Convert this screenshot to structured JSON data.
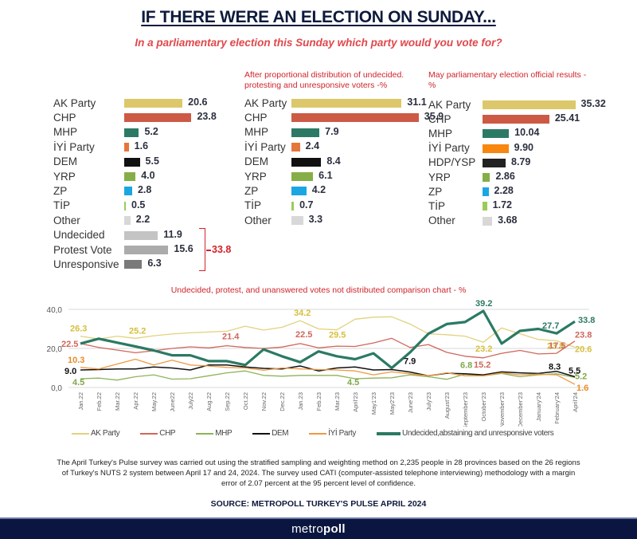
{
  "header": {
    "title": "IF THERE WERE AN ELECTION ON SUNDAY...",
    "subtitle": "In a parliamentary election this Sunday which party would you vote for?"
  },
  "panels": {
    "current": {
      "caption": "",
      "rows": [
        {
          "label": "AK Party",
          "value": 20.6,
          "display": "20.6",
          "color": "#dcc86a"
        },
        {
          "label": "CHP",
          "value": 23.8,
          "display": "23.8",
          "color": "#cd5a45"
        },
        {
          "label": "MHP",
          "value": 5.2,
          "display": "5.2",
          "color": "#2c7a66"
        },
        {
          "label": "İYİ Party",
          "value": 1.6,
          "display": "1.6",
          "color": "#e5763a"
        },
        {
          "label": "DEM",
          "value": 5.5,
          "display": "5.5",
          "color": "#111111"
        },
        {
          "label": "YRP",
          "value": 4.0,
          "display": "4.0",
          "color": "#86ae48"
        },
        {
          "label": "ZP",
          "value": 2.8,
          "display": "2.8",
          "color": "#1ba6e3"
        },
        {
          "label": "TİP",
          "value": 0.5,
          "display": "0.5",
          "color": "#9acb5a"
        },
        {
          "label": "Other",
          "value": 2.2,
          "display": "2.2",
          "color": "#d8d8d8"
        },
        {
          "label": "Undecided",
          "value": 11.9,
          "display": "11.9",
          "color": "#c4c4c4"
        },
        {
          "label": "Protest Vote",
          "value": 15.6,
          "display": "15.6",
          "color": "#ababab"
        },
        {
          "label": "Unresponsive",
          "value": 6.3,
          "display": "6.3",
          "color": "#7a7a7a"
        }
      ],
      "bracket_total": "33.8"
    },
    "distributed": {
      "caption": "After proportional distribution of undecided. protesting and unresponsive voters -%",
      "rows": [
        {
          "label": "AK Party",
          "value": 31.1,
          "display": "31.1",
          "color": "#dcc86a"
        },
        {
          "label": "CHP",
          "value": 35.9,
          "display": "35.9",
          "color": "#cd5a45"
        },
        {
          "label": "MHP",
          "value": 7.9,
          "display": "7.9",
          "color": "#2c7a66"
        },
        {
          "label": "İYİ Party",
          "value": 2.4,
          "display": "2.4",
          "color": "#e5763a"
        },
        {
          "label": "DEM",
          "value": 8.4,
          "display": "8.4",
          "color": "#111111"
        },
        {
          "label": "YRP",
          "value": 6.1,
          "display": "6.1",
          "color": "#86ae48"
        },
        {
          "label": "ZP",
          "value": 4.2,
          "display": "4.2",
          "color": "#1ba6e3"
        },
        {
          "label": "TİP",
          "value": 0.7,
          "display": "0.7",
          "color": "#9acb5a"
        },
        {
          "label": "Other",
          "value": 3.3,
          "display": "3.3",
          "color": "#d8d8d8"
        }
      ]
    },
    "official": {
      "caption": "May parliamentary election official results - %",
      "rows": [
        {
          "label": "AK Party",
          "value": 35.32,
          "display": "35.32",
          "color": "#dcc86a"
        },
        {
          "label": "CHP",
          "value": 25.41,
          "display": "25.41",
          "color": "#cd5a45"
        },
        {
          "label": "MHP",
          "value": 10.04,
          "display": "10.04",
          "color": "#2c7a66"
        },
        {
          "label": "İYİ Party",
          "value": 9.9,
          "display": "9.90",
          "color": "#f7870f"
        },
        {
          "label": "HDP/YSP",
          "value": 8.79,
          "display": "8.79",
          "color": "#222222"
        },
        {
          "label": "YRP",
          "value": 2.86,
          "display": "2.86",
          "color": "#86ae48"
        },
        {
          "label": "ZP",
          "value": 2.28,
          "display": "2.28",
          "color": "#1ba6e3"
        },
        {
          "label": "TİP",
          "value": 1.72,
          "display": "1.72",
          "color": "#9acb5a"
        },
        {
          "label": "Other",
          "value": 3.68,
          "display": "3.68",
          "color": "#d8d8d8"
        }
      ]
    }
  },
  "chart_data": {
    "type": "line",
    "title": "Undecided, protest, and unanswered votes not distributed comparison chart - %",
    "xlabel": "",
    "ylabel": "",
    "ylim": [
      0,
      40
    ],
    "yticks": [
      "0,0",
      "20,0",
      "40,0"
    ],
    "ytick_values": [
      0,
      20,
      40
    ],
    "grid": true,
    "legend_position": "bottom",
    "x": [
      "Jan.22",
      "Feb.22",
      "Mar.22",
      "Apr.22",
      "May.22",
      "June22",
      "July22",
      "Aug.22",
      "Sep.22",
      "Oct.22",
      "Nov.22",
      "Dec.22",
      "Jan.23",
      "Feb.23",
      "Mar.23",
      "April'23",
      "May1'23",
      "May2'23",
      "June'23",
      "July'23",
      "August'23",
      "September'23",
      "October'23",
      "November'23",
      "December'23",
      "January'24",
      "February'24",
      "April'24"
    ],
    "series": [
      {
        "name": "AK Party",
        "color": "#e2d27e",
        "width": 1.3,
        "values": [
          26.3,
          24.8,
          26.3,
          25.2,
          26.5,
          27.4,
          28.0,
          28.4,
          28.8,
          31.4,
          29.4,
          30.8,
          34.2,
          30.0,
          29.5,
          35.0,
          36.0,
          36.2,
          32.5,
          27.5,
          27.0,
          26.3,
          23.2,
          30.5,
          27.5,
          24.6,
          23.9,
          20.6
        ],
        "labels": {
          "0": "26.3",
          "3": "25.2",
          "12": "34.2",
          "14": "29.5",
          "22": "23.2",
          "26": "23.9",
          "27": "20.6"
        }
      },
      {
        "name": "CHP",
        "color": "#d0675c",
        "width": 1.3,
        "values": [
          22.5,
          20.5,
          19.2,
          17.8,
          18.8,
          20.0,
          20.8,
          20.3,
          21.4,
          20.5,
          20.0,
          20.7,
          22.5,
          20.3,
          21.2,
          21.0,
          22.8,
          25.2,
          20.5,
          22.0,
          18.0,
          16.0,
          15.2,
          17.5,
          19.0,
          17.2,
          17.5,
          23.8
        ],
        "labels": {
          "0": "22.5",
          "8": "21.4",
          "12": "22.5",
          "22": "15.2",
          "26": "17.5",
          "27": "23.8"
        }
      },
      {
        "name": "MHP",
        "color": "#8fb35a",
        "width": 1.3,
        "values": [
          4.5,
          4.8,
          3.8,
          5.5,
          6.5,
          4.3,
          4.5,
          6.0,
          7.5,
          8.5,
          6.2,
          5.8,
          6.2,
          6.2,
          6.2,
          4.5,
          4.8,
          5.0,
          6.5,
          5.5,
          4.2,
          6.8,
          6.0,
          7.2,
          5.5,
          6.5,
          7.0,
          5.2
        ],
        "labels": {
          "0": "4.5",
          "15": "4.5",
          "21": "6.8",
          "27": "5.2"
        }
      },
      {
        "name": "DEM",
        "color": "#111111",
        "width": 1.5,
        "values": [
          9.0,
          9.2,
          9.5,
          9.5,
          10.5,
          10.0,
          9.0,
          11.5,
          11.5,
          10.5,
          9.8,
          9.5,
          11.0,
          8.5,
          10.0,
          10.5,
          9.0,
          9.2,
          7.9,
          6.0,
          7.3,
          7.0,
          6.5,
          8.0,
          7.5,
          7.2,
          8.3,
          5.5
        ],
        "labels": {
          "0": "9.0",
          "18": "7.9",
          "26": "8.3",
          "27": "5.5"
        }
      },
      {
        "name": "İYİ Party",
        "color": "#ee9a43",
        "width": 1.3,
        "values": [
          10.3,
          9.5,
          12.0,
          14.5,
          11.5,
          14.0,
          11.5,
          11.0,
          10.3,
          10.0,
          8.8,
          10.0,
          9.5,
          9.2,
          9.0,
          8.5,
          6.5,
          8.0,
          7.0,
          6.0,
          7.5,
          6.0,
          6.0,
          7.5,
          6.5,
          6.8,
          6.5,
          1.6
        ],
        "labels": {
          "0": "10.3",
          "27": "1.6"
        }
      },
      {
        "name": "Undecided,abstaining and unresponsive voters",
        "color": "#2b7a63",
        "width": 3.2,
        "values": [
          22.5,
          25.0,
          23.0,
          21.0,
          19.0,
          16.5,
          16.5,
          13.5,
          13.5,
          11.5,
          19.5,
          16.0,
          13.0,
          18.5,
          16.0,
          14.5,
          17.5,
          10.0,
          18.0,
          27.5,
          32.5,
          33.5,
          39.2,
          22.5,
          29.0,
          30.0,
          27.7,
          33.8
        ],
        "labels": {
          "22": "39.2",
          "26": "27.7",
          "27": "33.8"
        }
      }
    ]
  },
  "note": "The April Turkey's Pulse survey was carried out using the stratified sampling and weighting method on 2,235 people in 28 provinces based on the 26 regions of Turkey's NUTS 2 system between April 17 and 24, 2024. The survey used CATI (computer-assisted telephone interviewing) methodology with a margin error of 2.07 percent at the 95 percent level of confidence.",
  "source": "SOURCE: METROPOLL TURKEY'S PULSE APRIL 2024",
  "footer": {
    "logo_light": "metro",
    "logo_bold": "poll"
  }
}
